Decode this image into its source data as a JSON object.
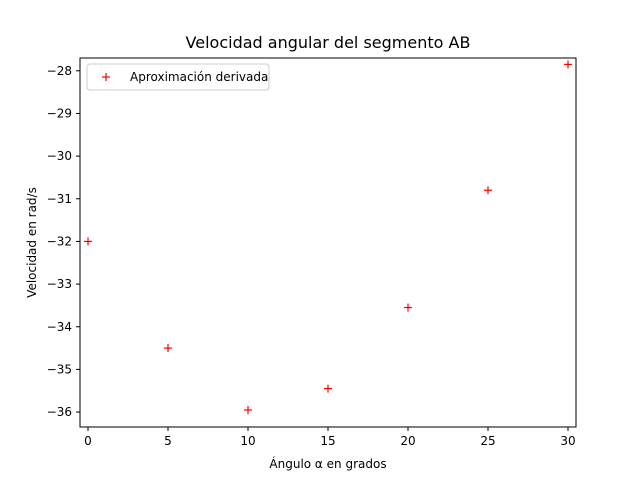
{
  "chart_data": {
    "type": "scatter",
    "title": "Velocidad angular del segmento AB",
    "xlabel": "Ángulo α en grados",
    "ylabel": "Velocidad en rad/s",
    "xlim": [
      -0.5,
      30.5
    ],
    "ylim": [
      -36.35,
      -27.7
    ],
    "xticks": [
      0,
      5,
      10,
      15,
      20,
      25,
      30
    ],
    "xtick_labels": [
      "0",
      "5",
      "10",
      "15",
      "20",
      "25",
      "30"
    ],
    "yticks": [
      -28,
      -29,
      -30,
      -31,
      -32,
      -33,
      -34,
      -35,
      -36
    ],
    "ytick_labels": [
      "−28",
      "−29",
      "−30",
      "−31",
      "−32",
      "−33",
      "−34",
      "−35",
      "−36"
    ],
    "grid": false,
    "legend_position": "top-left",
    "series": [
      {
        "name": "Aproximación derivada",
        "marker": "+",
        "color": "#ff0000",
        "x": [
          0,
          5,
          10,
          15,
          20,
          25,
          30
        ],
        "y": [
          -32.0,
          -34.5,
          -35.95,
          -35.45,
          -33.55,
          -30.8,
          -27.85
        ]
      }
    ]
  }
}
